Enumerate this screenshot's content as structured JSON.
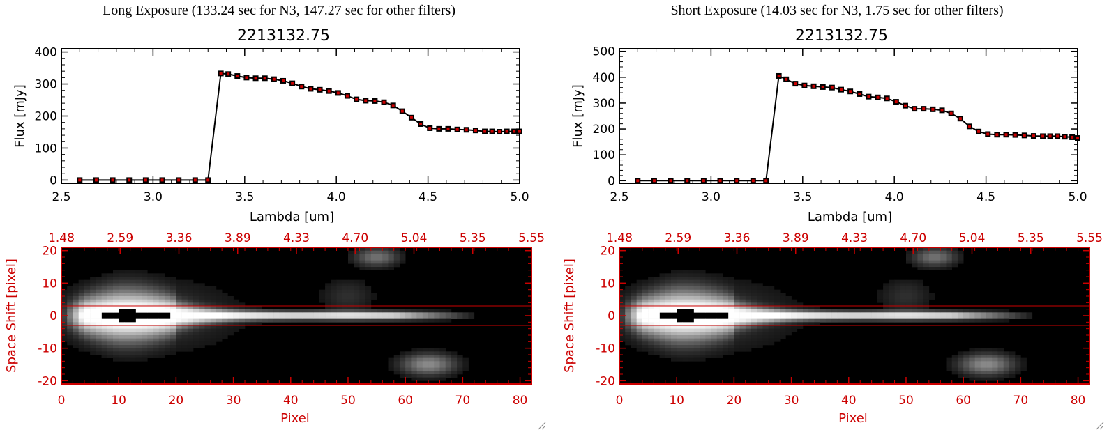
{
  "panels": [
    {
      "exposure_title": "Long Exposure (133.24 sec for N3, 147.27 sec for other filters)",
      "spectrum_title": "2213132.75",
      "flux_ylabel": "Flux [mJy]",
      "lambda_xlabel": "Lambda [um]",
      "space_ylabel": "Space Shift [pixel]",
      "pixel_xlabel": "Pixel"
    },
    {
      "exposure_title": "Short Exposure (14.03 sec for N3, 1.75 sec for other filters)",
      "spectrum_title": "2213132.75",
      "flux_ylabel": "Flux [mJy]",
      "lambda_xlabel": "Lambda [um]",
      "space_ylabel": "Space Shift [pixel]",
      "pixel_xlabel": "Pixel"
    }
  ],
  "chart_data": [
    {
      "type": "line",
      "title": "2213132.75",
      "xlabel": "Lambda [um]",
      "ylabel": "Flux [mJy]",
      "xlim": [
        2.5,
        5.0
      ],
      "ylim": [
        -10,
        410
      ],
      "xticks": [
        "2.5",
        "3.0",
        "3.5",
        "4.0",
        "4.5",
        "5.0"
      ],
      "yticks": [
        "0",
        "100",
        "200",
        "300",
        "400"
      ],
      "x": [
        2.6,
        2.69,
        2.78,
        2.87,
        2.96,
        3.05,
        3.14,
        3.23,
        3.3,
        3.37,
        3.41,
        3.46,
        3.51,
        3.56,
        3.61,
        3.66,
        3.71,
        3.76,
        3.81,
        3.86,
        3.91,
        3.96,
        4.01,
        4.06,
        4.11,
        4.16,
        4.21,
        4.26,
        4.31,
        4.36,
        4.41,
        4.46,
        4.51,
        4.56,
        4.61,
        4.66,
        4.71,
        4.76,
        4.81,
        4.85,
        4.89,
        4.93,
        4.97,
        5.0
      ],
      "y": [
        0,
        0,
        0,
        0,
        0,
        0,
        0,
        0,
        0,
        333,
        331,
        325,
        320,
        318,
        318,
        315,
        310,
        302,
        292,
        285,
        282,
        278,
        272,
        263,
        252,
        248,
        247,
        243,
        233,
        215,
        195,
        175,
        162,
        160,
        160,
        158,
        157,
        155,
        152,
        152,
        151,
        152,
        152,
        152
      ],
      "marker_color": "#cc0000"
    },
    {
      "type": "heatmap",
      "xlabel": "Pixel",
      "ylabel": "Space Shift [pixel]",
      "xlim": [
        0,
        82
      ],
      "ylim": [
        -21,
        21
      ],
      "xticks": [
        "0",
        "10",
        "20",
        "30",
        "40",
        "50",
        "60",
        "70",
        "80"
      ],
      "yticks": [
        "-20",
        "-10",
        "0",
        "10",
        "20"
      ],
      "top_axis_ticks": [
        "1.48",
        "2.59",
        "3.36",
        "3.89",
        "4.33",
        "4.70",
        "5.04",
        "5.35",
        "5.55"
      ],
      "aperture_lines": [
        -3,
        3
      ],
      "axis_color": "#cc0000"
    },
    {
      "type": "line",
      "title": "2213132.75",
      "xlabel": "Lambda [um]",
      "ylabel": "Flux [mJy]",
      "xlim": [
        2.5,
        5.0
      ],
      "ylim": [
        -10,
        510
      ],
      "xticks": [
        "2.5",
        "3.0",
        "3.5",
        "4.0",
        "4.5",
        "5.0"
      ],
      "yticks": [
        "0",
        "100",
        "200",
        "300",
        "400",
        "500"
      ],
      "x": [
        2.6,
        2.69,
        2.78,
        2.87,
        2.96,
        3.05,
        3.14,
        3.23,
        3.3,
        3.37,
        3.41,
        3.46,
        3.51,
        3.56,
        3.61,
        3.66,
        3.71,
        3.76,
        3.81,
        3.86,
        3.91,
        3.96,
        4.01,
        4.06,
        4.11,
        4.16,
        4.21,
        4.26,
        4.31,
        4.36,
        4.41,
        4.46,
        4.51,
        4.56,
        4.61,
        4.66,
        4.71,
        4.76,
        4.81,
        4.85,
        4.89,
        4.93,
        4.97,
        5.0
      ],
      "y": [
        0,
        0,
        0,
        0,
        0,
        0,
        0,
        0,
        0,
        405,
        392,
        375,
        368,
        365,
        362,
        360,
        352,
        345,
        335,
        325,
        322,
        318,
        305,
        290,
        278,
        278,
        276,
        272,
        260,
        240,
        210,
        190,
        180,
        178,
        178,
        177,
        175,
        173,
        172,
        172,
        172,
        170,
        168,
        165
      ],
      "marker_color": "#cc0000"
    },
    {
      "type": "heatmap",
      "xlabel": "Pixel",
      "ylabel": "Space Shift [pixel]",
      "xlim": [
        0,
        82
      ],
      "ylim": [
        -21,
        21
      ],
      "xticks": [
        "0",
        "10",
        "20",
        "30",
        "40",
        "50",
        "60",
        "70",
        "80"
      ],
      "yticks": [
        "-20",
        "-10",
        "0",
        "10",
        "20"
      ],
      "top_axis_ticks": [
        "1.48",
        "2.59",
        "3.36",
        "3.89",
        "4.33",
        "4.70",
        "5.04",
        "5.35",
        "5.55"
      ],
      "aperture_lines": [
        -3,
        3
      ],
      "axis_color": "#cc0000"
    }
  ]
}
